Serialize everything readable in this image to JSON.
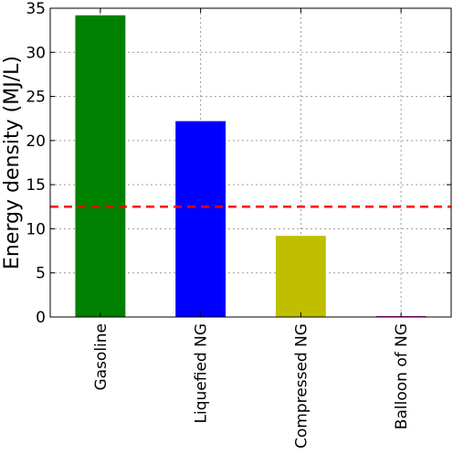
{
  "chart_data": {
    "type": "bar",
    "categories": [
      "Gasoline",
      "Liquefied NG",
      "Compressed NG",
      "Balloon of NG"
    ],
    "values": [
      34.2,
      22.2,
      9.2,
      0.04
    ],
    "colors": [
      "#008000",
      "#0000ff",
      "#bfbf00",
      "#bf00bf"
    ],
    "title": "",
    "xlabel": "",
    "ylabel": "Energy density (MJ/L)",
    "ylim": [
      0,
      35
    ],
    "yticks": [
      0,
      5,
      10,
      15,
      20,
      25,
      30,
      35
    ],
    "grid": true,
    "reference_line": {
      "value": 12.5,
      "color": "#ff0000",
      "style": "dashed"
    }
  }
}
